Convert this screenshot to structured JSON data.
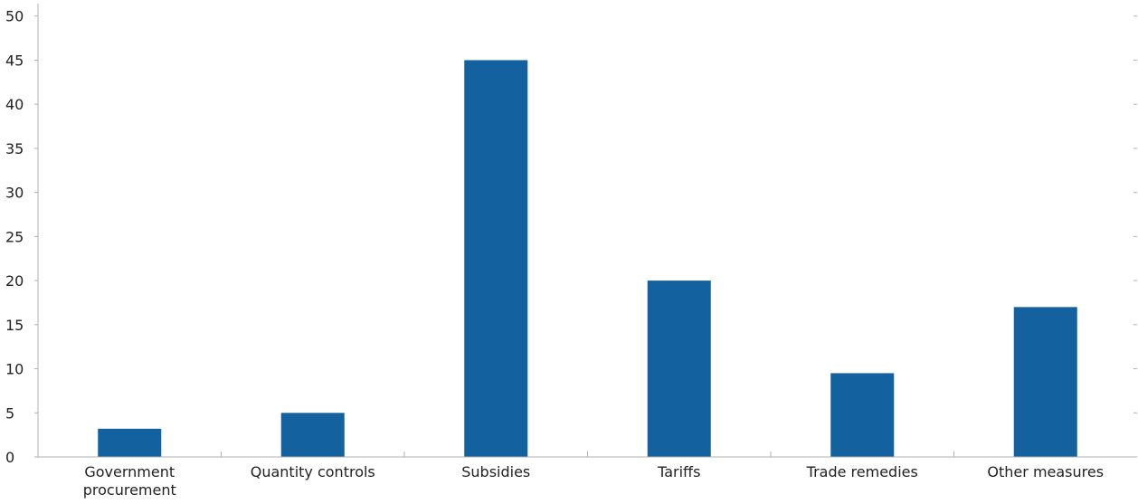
{
  "chart_data": {
    "type": "bar",
    "categories": [
      [
        "Government",
        "procurement"
      ],
      [
        "Quantity controls"
      ],
      [
        "Subsidies"
      ],
      [
        "Tariffs"
      ],
      [
        "Trade remedies"
      ],
      [
        "Other measures"
      ]
    ],
    "values": [
      3.2,
      5,
      45,
      20,
      9.5,
      17
    ],
    "yticks": [
      0,
      5,
      10,
      15,
      20,
      25,
      30,
      35,
      40,
      45,
      50
    ],
    "ylim": [
      0,
      51
    ],
    "title": "",
    "xlabel": "",
    "ylabel": "",
    "grid": false,
    "bar_color": "#1461a0",
    "axis_color": "#b0b0b0"
  }
}
